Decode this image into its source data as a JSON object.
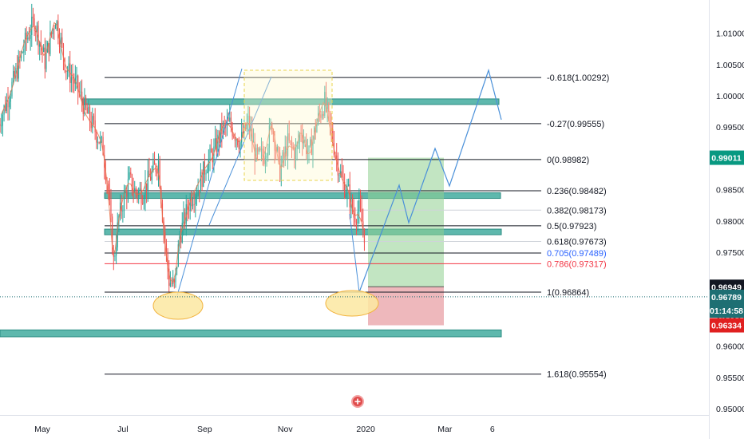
{
  "chart_data": {
    "type": "candlestick",
    "x_axis": {
      "labels": [
        "May",
        "Jul",
        "Sep",
        "Nov",
        "2020",
        "Mar",
        "6"
      ],
      "label_days": [
        0,
        61,
        123,
        184,
        245,
        305,
        341
      ]
    },
    "y_axis": {
      "range": [
        0.949,
        1.0153
      ],
      "ticks": [
        "1.01000",
        "1.00500",
        "1.00000",
        "0.99500",
        "0.99000",
        "0.98500",
        "0.98000",
        "0.97500",
        "0.97000",
        "0.96500",
        "0.96000",
        "0.95500",
        "0.95000"
      ]
    },
    "fib_levels": [
      {
        "label": "-0.618(1.00292)",
        "value": 1.00292,
        "color": "#131722",
        "line": "#131722"
      },
      {
        "label": "-0.27(0.99555)",
        "value": 0.99555,
        "color": "#131722",
        "line": "#131722"
      },
      {
        "label": "0(0.98982)",
        "value": 0.98982,
        "color": "#131722",
        "line": "#131722"
      },
      {
        "label": "0.236(0.98482)",
        "value": 0.98482,
        "color": "#131722",
        "line": "#131722"
      },
      {
        "label": "0.382(0.98173)",
        "value": 0.98173,
        "color": "#131722",
        "line": "#cfd3da"
      },
      {
        "label": "0.5(0.97923)",
        "value": 0.97923,
        "color": "#131722",
        "line": "#131722"
      },
      {
        "label": "0.618(0.97673)",
        "value": 0.97673,
        "color": "#131722",
        "line": "#cfd3da"
      },
      {
        "label": "0.705(0.97489)",
        "value": 0.97489,
        "color": "#2962ff",
        "line": "#131722"
      },
      {
        "label": "0.786(0.97317)",
        "value": 0.97317,
        "color": "#f23645",
        "line": "#f23645"
      },
      {
        "label": "1(0.96864)",
        "value": 0.96864,
        "color": "#131722",
        "line": "#131722"
      },
      {
        "label": "1.618(0.95554)",
        "value": 0.95554,
        "color": "#131722",
        "line": "#131722"
      }
    ],
    "zones": [
      {
        "top": 0.9995,
        "bottom": 0.9988
      },
      {
        "top": 0.9845,
        "bottom": 0.9837
      },
      {
        "top": 0.9787,
        "bottom": 0.978
      },
      {
        "top": 0.9626,
        "bottom": 0.9615
      }
    ],
    "price_tags": [
      {
        "text": "0.99011",
        "value": 0.99011,
        "color": "#089981"
      },
      {
        "text": "0.96949",
        "value": 0.96949,
        "color": "#131722"
      },
      {
        "text": "0.96789",
        "value": 0.96789,
        "color": "#1e6f73"
      },
      {
        "text": "01:14:58",
        "value": 0.9657,
        "color": "#1e6f73"
      },
      {
        "text": "0.96334",
        "value": 0.96334,
        "color": "#e02020"
      }
    ],
    "position": {
      "entry": 0.9695,
      "target": 0.99011,
      "stop": 0.96334
    },
    "last_price": 0.96789
  },
  "colors": {
    "up": "#26a69a",
    "down": "#ef5350",
    "zone": "#5eb8ad",
    "zone_border": "#2b8c82",
    "projection": "#4a90d9",
    "ellipse_fill": "#fbe7a1",
    "ellipse_stroke": "#f2b33d"
  }
}
